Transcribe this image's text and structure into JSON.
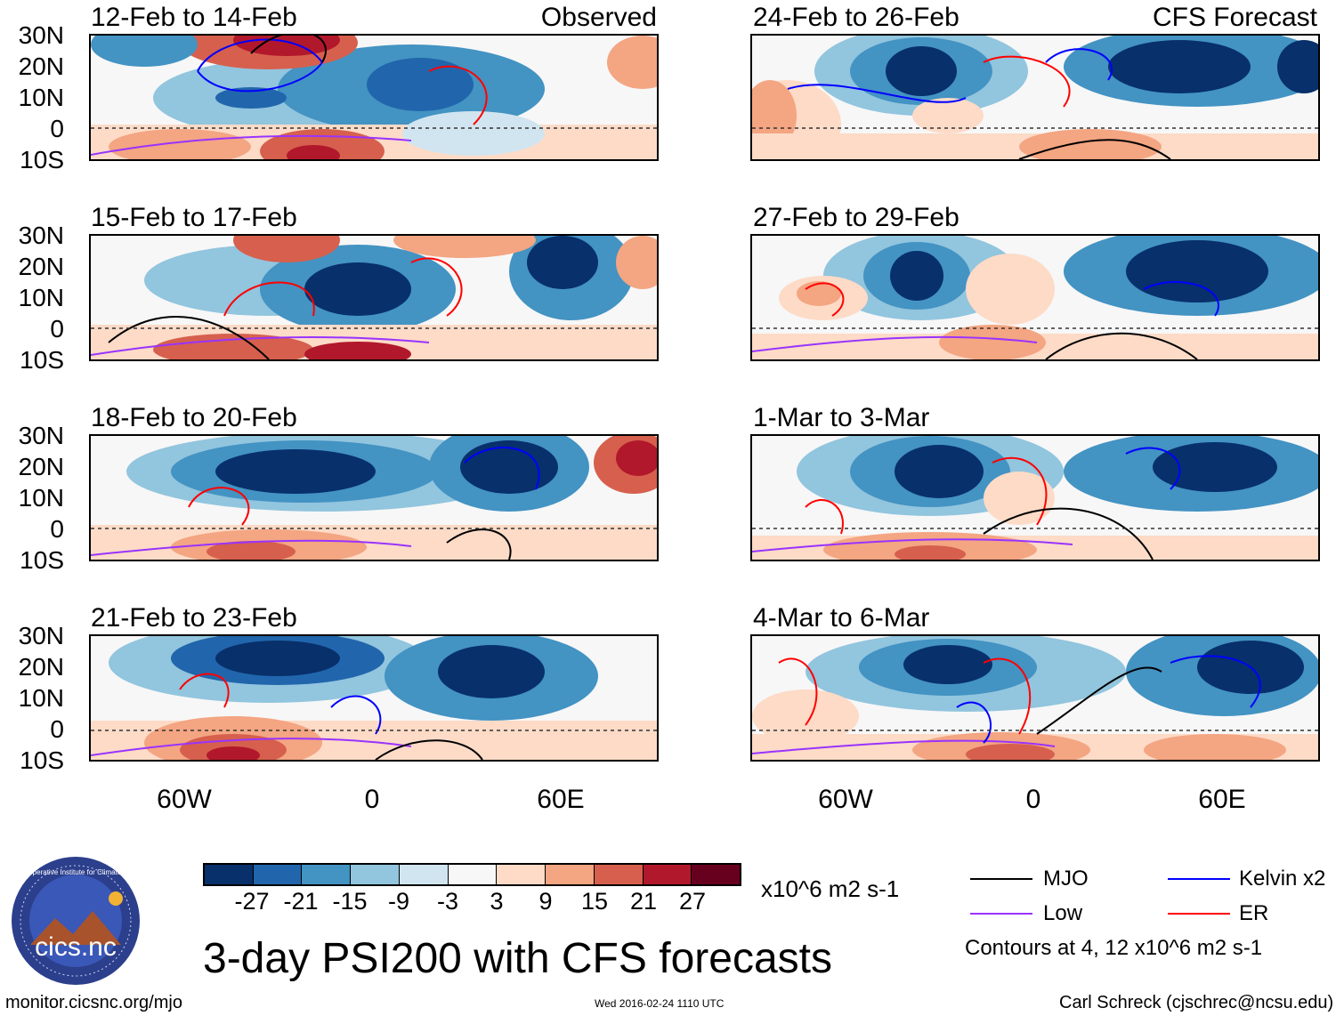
{
  "panels_left": [
    {
      "title": "12-Feb to 14-Feb",
      "source": "Observed"
    },
    {
      "title": "15-Feb to 17-Feb",
      "source": ""
    },
    {
      "title": "18-Feb to 20-Feb",
      "source": ""
    },
    {
      "title": "21-Feb to 23-Feb",
      "source": ""
    }
  ],
  "panels_right": [
    {
      "title": "24-Feb to 26-Feb",
      "source": "CFS Forecast"
    },
    {
      "title": "27-Feb to 29-Feb",
      "source": ""
    },
    {
      "title": "1-Mar to 3-Mar",
      "source": ""
    },
    {
      "title": "4-Mar to 6-Mar",
      "source": ""
    }
  ],
  "lat_labels": [
    "30N",
    "20N",
    "10N",
    "0",
    "10S"
  ],
  "lon_labels": [
    "60W",
    "0",
    "60E"
  ],
  "colorbar": {
    "colors": [
      "#08306b",
      "#2166ac",
      "#4393c3",
      "#92c5de",
      "#d1e5f0",
      "#f7f7f7",
      "#fddbc7",
      "#f4a582",
      "#d6604d",
      "#b2182b",
      "#67001f"
    ],
    "tick_labels": [
      "-27",
      "-21",
      "-15",
      "-9",
      "-3",
      "3",
      "9",
      "15",
      "21",
      "27"
    ],
    "units": "x10^6 m2 s-1"
  },
  "legend": {
    "items": [
      {
        "label": "MJO",
        "color": "#000000"
      },
      {
        "label": "Kelvin x2",
        "color": "#0000ff"
      },
      {
        "label": "Low",
        "color": "#9933ff"
      },
      {
        "label": "ER",
        "color": "#ff0000"
      }
    ],
    "note": "Contours at 4, 12 x10^6 m2 s-1"
  },
  "main_title": "3-day PSI200 with CFS forecasts",
  "logo_text": "cics.nc",
  "logo_ring_text": "Cooperative Institute for Climate and Satellites",
  "footer": {
    "left": "monitor.cicsnc.org/mjo",
    "center": "Wed 2016-02-24 1110 UTC",
    "right": "Carl Schreck (cjschrec@ncsu.edu)"
  }
}
